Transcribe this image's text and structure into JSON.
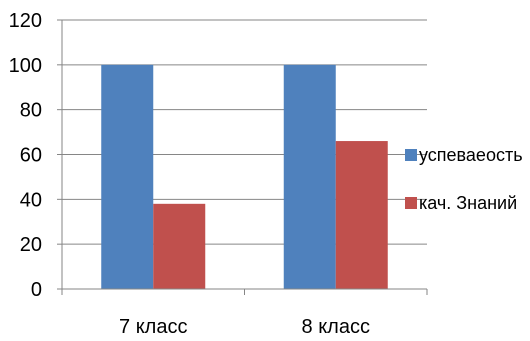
{
  "chart_data": {
    "type": "bar",
    "categories": [
      "7 класс",
      "8 класс"
    ],
    "series": [
      {
        "name": "успеваеость",
        "values": [
          100,
          100
        ],
        "color": "#4f81bd"
      },
      {
        "name": "кач. Знаний",
        "values": [
          38,
          66
        ],
        "color": "#c0504d"
      }
    ],
    "ylim": [
      0,
      120
    ],
    "yticks": [
      "0",
      "20",
      "40",
      "60",
      "80",
      "100",
      "120"
    ],
    "grid": true,
    "legend_position": "right"
  }
}
